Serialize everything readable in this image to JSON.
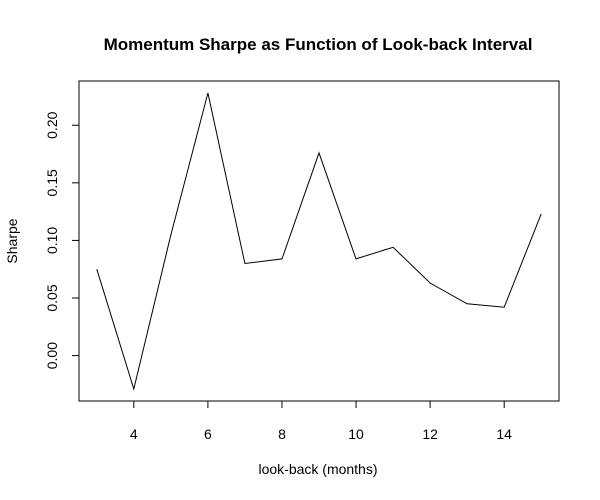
{
  "chart_data": {
    "type": "line",
    "title": "Momentum Sharpe as Function of Look-back Interval",
    "xlabel": "look-back (months)",
    "ylabel": "Sharpe",
    "x": [
      3,
      4,
      5,
      6,
      7,
      8,
      9,
      10,
      11,
      12,
      13,
      14,
      15
    ],
    "series": [
      {
        "values": [
          0.075,
          -0.029,
          0.105,
          0.228,
          0.08,
          0.084,
          0.176,
          0.084,
          0.094,
          0.063,
          0.045,
          0.042,
          0.123
        ]
      }
    ],
    "xlim": [
      2.52,
      15.48
    ],
    "ylim": [
      -0.0394,
      0.2384
    ],
    "xticks": [
      4,
      6,
      8,
      10,
      12,
      14
    ],
    "xtick_labels": [
      "4",
      "6",
      "8",
      "10",
      "12",
      "14"
    ],
    "yticks": [
      0.0,
      0.05,
      0.1,
      0.15,
      0.2
    ],
    "ytick_labels": [
      "0.00",
      "0.05",
      "0.10",
      "0.15",
      "0.20"
    ],
    "line_color": "#000000",
    "grid": false,
    "legend": "none"
  }
}
